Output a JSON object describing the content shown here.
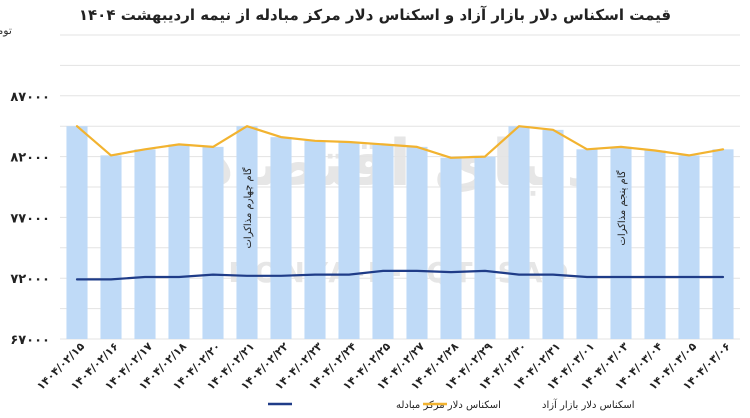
{
  "chart_data": {
    "type": "bar",
    "title": "قیمت اسکناس دلار بازار آزاد و اسکناس دلار مرکز مبادله از نیمه اردیبهشت ۱۴۰۴",
    "ylabel": "تومان",
    "ylim": [
      67000,
      92000
    ],
    "yticks": [
      67000,
      72000,
      77000,
      82000,
      87000
    ],
    "ytick_labels": [
      "۶۷۰۰۰",
      "۷۲۰۰۰",
      "۷۷۰۰۰",
      "۸۲۰۰۰",
      "۸۷۰۰۰"
    ],
    "grid": true,
    "legend_position": "bottom-center",
    "categories": [
      "۱۴۰۴/۰۲/۱۵",
      "۱۴۰۴/۰۲/۱۶",
      "۱۴۰۴/۰۲/۱۷",
      "۱۴۰۴/۰۲/۱۸",
      "۱۴۰۴/۰۲/۲۰",
      "۱۴۰۴/۰۲/۲۱",
      "۱۴۰۴/۰۲/۲۲",
      "۱۴۰۴/۰۲/۲۳",
      "۱۴۰۴/۰۲/۲۴",
      "۱۴۰۴/۰۲/۲۵",
      "۱۴۰۴/۰۲/۲۷",
      "۱۴۰۴/۰۲/۲۸",
      "۱۴۰۴/۰۲/۲۹",
      "۱۴۰۴/۰۲/۳۰",
      "۱۴۰۴/۰۲/۳۱",
      "۱۴۰۴/۰۳/۰۱",
      "۱۴۰۴/۰۳/۰۳",
      "۱۴۰۴/۰۳/۰۴",
      "۱۴۰۴/۰۳/۰۵",
      "۱۴۰۴/۰۳/۰۶"
    ],
    "bar_values": [
      84500,
      82100,
      82600,
      83000,
      82800,
      84500,
      83600,
      83300,
      83200,
      83000,
      82800,
      81900,
      82000,
      84500,
      84200,
      82600,
      82800,
      82500,
      82100,
      82600
    ],
    "series": [
      {
        "name": "اسکناس دلار بازار آزاد",
        "type": "line",
        "color": "#f2b330",
        "values": [
          84500,
          82100,
          82600,
          83000,
          82800,
          84500,
          83600,
          83300,
          83200,
          83000,
          82800,
          81900,
          82000,
          84500,
          84200,
          82600,
          82800,
          82500,
          82100,
          82600
        ]
      },
      {
        "name": "اسکناس دلار مرکز مبادله",
        "type": "line",
        "color": "#1f3c88",
        "values": [
          71900,
          71900,
          72100,
          72100,
          72300,
          72200,
          72200,
          72300,
          72300,
          72600,
          72600,
          72500,
          72600,
          72300,
          72300,
          72100,
          72100,
          72100,
          72100,
          72100
        ]
      }
    ],
    "bar_color": "#bfdaf7",
    "annotations": [
      {
        "text": "گام چهارم مذاکرات",
        "x_category": "۱۴۰۴/۰۲/۲۱"
      },
      {
        "text": "گام پنجم مذاکرات",
        "x_category": "۱۴۰۴/۰۳/۰۳"
      }
    ]
  },
  "watermark": {
    "main": "دنیای اقتصاد",
    "latin": "DONYA-E-EQTESAD"
  }
}
